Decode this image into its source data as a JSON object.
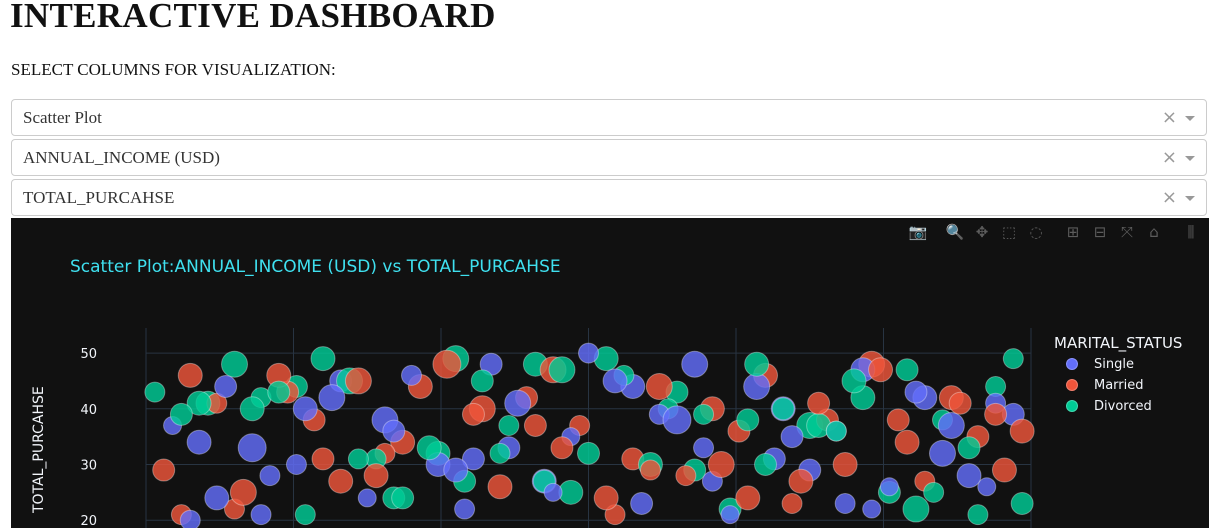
{
  "page": {
    "title": "INTERACTIVE DASHBOARD",
    "subtitle": "SELECT COLUMNS FOR VISUALIZATION:"
  },
  "dropdowns": [
    {
      "value": "Scatter Plot",
      "clear": "×"
    },
    {
      "value": "ANNUAL_INCOME (USD)",
      "clear": "×"
    },
    {
      "value": "TOTAL_PURCAHSE",
      "clear": "×"
    }
  ],
  "modebar": [
    {
      "name": "camera-icon",
      "glyph": "📷"
    },
    {
      "name": "zoom-icon",
      "glyph": "🔍"
    },
    {
      "name": "pan-icon",
      "glyph": "✥"
    },
    {
      "name": "box-select-icon",
      "glyph": "⬚"
    },
    {
      "name": "lasso-select-icon",
      "glyph": "◌"
    },
    {
      "name": "zoom-in-icon",
      "glyph": "⊞"
    },
    {
      "name": "zoom-out-icon",
      "glyph": "⊟"
    },
    {
      "name": "autoscale-icon",
      "glyph": "⤧"
    },
    {
      "name": "reset-axes-icon",
      "glyph": "⌂"
    },
    {
      "name": "plotly-logo-icon",
      "glyph": "⫼"
    }
  ],
  "colors": {
    "background": "#111111",
    "grid": "#283442",
    "title": "#3fe0ef",
    "Single": "#636efa",
    "Married": "#ef553b",
    "Divorced": "#00cc96"
  },
  "chart_data": {
    "type": "scatter",
    "title": "Scatter Plot:ANNUAL_INCOME (USD) vs TOTAL_PURCAHSE",
    "xlabel": "",
    "ylabel": "TOTAL_PURCAHSE",
    "y_ticks": [
      20,
      30,
      40,
      50
    ],
    "ylim": [
      18.6,
      54.5
    ],
    "grid": true,
    "legend_title": "MARITAL_STATUS",
    "legend_position": "right",
    "series": [
      {
        "name": "Single",
        "color": "#636efa",
        "x": [
          0.03,
          0.06,
          0.09,
          0.12,
          0.14,
          0.18,
          0.21,
          0.25,
          0.28,
          0.3,
          0.33,
          0.36,
          0.39,
          0.42,
          0.45,
          0.48,
          0.5,
          0.53,
          0.56,
          0.6,
          0.63,
          0.66,
          0.69,
          0.72,
          0.75,
          0.78,
          0.81,
          0.84,
          0.87,
          0.9,
          0.93,
          0.96,
          0.98,
          0.08,
          0.17,
          0.27,
          0.37,
          0.46,
          0.55,
          0.64,
          0.73,
          0.82,
          0.91,
          0.05,
          0.22,
          0.35,
          0.58,
          0.71,
          0.88,
          0.95,
          0.13,
          0.41,
          0.62,
          0.79
        ],
        "y": [
          37,
          34,
          44,
          33,
          28,
          40,
          42,
          24,
          36,
          46,
          30,
          22,
          48,
          41,
          27,
          35,
          50,
          45,
          23,
          38,
          33,
          21,
          44,
          40,
          29,
          36,
          47,
          26,
          43,
          32,
          28,
          41,
          39,
          24,
          30,
          38,
          31,
          25,
          44,
          27,
          35,
          22,
          37,
          20,
          45,
          29,
          39,
          31,
          42,
          26,
          21,
          33,
          48,
          23
        ],
        "s": [
          9,
          12,
          11,
          14,
          10,
          12,
          13,
          9,
          11,
          10,
          12,
          10,
          11,
          13,
          12,
          9,
          10,
          12,
          11,
          14,
          10,
          9,
          13,
          12,
          11,
          10,
          12,
          9,
          11,
          13,
          12,
          10,
          11,
          12,
          10,
          13,
          11,
          9,
          12,
          10,
          11,
          9,
          13,
          10,
          11,
          12,
          10,
          11,
          12,
          9,
          10,
          11,
          13,
          10
        ]
      },
      {
        "name": "Married",
        "color": "#ef553b",
        "x": [
          0.02,
          0.05,
          0.08,
          0.11,
          0.15,
          0.19,
          0.22,
          0.24,
          0.27,
          0.31,
          0.34,
          0.37,
          0.4,
          0.43,
          0.46,
          0.49,
          0.52,
          0.55,
          0.58,
          0.61,
          0.64,
          0.67,
          0.7,
          0.73,
          0.76,
          0.79,
          0.82,
          0.85,
          0.88,
          0.91,
          0.94,
          0.97,
          0.99,
          0.04,
          0.16,
          0.26,
          0.38,
          0.47,
          0.57,
          0.68,
          0.77,
          0.86,
          0.96,
          0.1,
          0.29,
          0.44,
          0.65,
          0.83,
          0.2,
          0.53,
          0.74,
          0.92
        ],
        "y": [
          29,
          46,
          41,
          25,
          46,
          38,
          27,
          45,
          32,
          44,
          48,
          39,
          26,
          42,
          47,
          37,
          24,
          31,
          44,
          28,
          40,
          36,
          46,
          23,
          41,
          30,
          48,
          38,
          27,
          42,
          35,
          29,
          36,
          21,
          43,
          28,
          40,
          33,
          29,
          24,
          38,
          34,
          39,
          22,
          34,
          37,
          30,
          47,
          31,
          21,
          27,
          41
        ],
        "s": [
          11,
          12,
          10,
          13,
          12,
          11,
          12,
          13,
          10,
          12,
          14,
          11,
          12,
          11,
          13,
          10,
          12,
          11,
          13,
          10,
          12,
          11,
          12,
          10,
          11,
          12,
          13,
          11,
          10,
          12,
          11,
          12,
          12,
          10,
          11,
          12,
          13,
          11,
          10,
          12,
          11,
          12,
          11,
          10,
          12,
          11,
          13,
          12,
          11,
          10,
          12,
          11
        ]
      },
      {
        "name": "Divorced",
        "color": "#00cc96",
        "x": [
          0.01,
          0.04,
          0.07,
          0.1,
          0.13,
          0.17,
          0.2,
          0.23,
          0.26,
          0.29,
          0.32,
          0.35,
          0.38,
          0.41,
          0.44,
          0.47,
          0.5,
          0.54,
          0.57,
          0.6,
          0.63,
          0.66,
          0.69,
          0.72,
          0.75,
          0.78,
          0.81,
          0.84,
          0.87,
          0.9,
          0.93,
          0.96,
          0.99,
          0.06,
          0.15,
          0.24,
          0.33,
          0.45,
          0.52,
          0.59,
          0.7,
          0.8,
          0.89,
          0.98,
          0.12,
          0.28,
          0.4,
          0.62,
          0.76,
          0.86,
          0.18,
          0.36,
          0.48,
          0.68,
          0.94
        ],
        "y": [
          43,
          39,
          41,
          48,
          42,
          44,
          49,
          45,
          31,
          24,
          33,
          49,
          45,
          37,
          48,
          47,
          32,
          46,
          30,
          43,
          39,
          22,
          48,
          40,
          37,
          36,
          42,
          25,
          22,
          38,
          33,
          44,
          23,
          41,
          43,
          31,
          32,
          27,
          49,
          40,
          30,
          45,
          25,
          49,
          40,
          24,
          32,
          29,
          37,
          47,
          21,
          27,
          25,
          38,
          21
        ],
        "s": [
          10,
          11,
          12,
          13,
          10,
          11,
          12,
          13,
          10,
          11,
          12,
          13,
          11,
          10,
          12,
          13,
          11,
          10,
          12,
          11,
          10,
          11,
          12,
          11,
          13,
          10,
          12,
          11,
          13,
          10,
          11,
          10,
          11,
          12,
          11,
          10,
          12,
          11,
          12,
          10,
          11,
          12,
          10,
          10,
          12,
          11,
          10,
          11,
          12,
          11,
          10,
          11,
          12,
          11,
          10
        ]
      }
    ]
  }
}
